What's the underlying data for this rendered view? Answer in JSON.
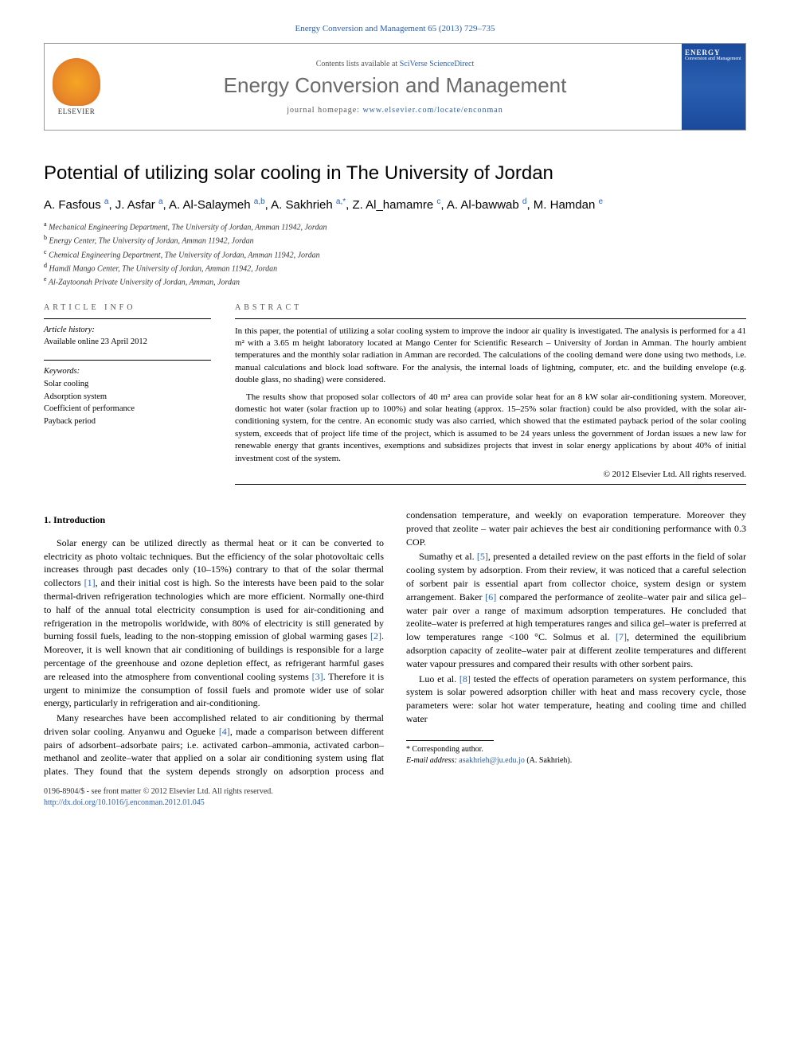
{
  "colors": {
    "link": "#2a5fb0",
    "text": "#000000",
    "muted": "#555555",
    "journal_name": "#6a6a6a",
    "background": "#ffffff",
    "border": "#000000",
    "cover_bg": "#1a4a9c"
  },
  "typography": {
    "body_font": "Georgia, 'Times New Roman', serif",
    "heading_font": "'Trebuchet MS', Arial, sans-serif",
    "title_size_pt": 24,
    "journal_size_pt": 26,
    "body_size_pt": 12,
    "abstract_size_pt": 11,
    "small_size_pt": 10
  },
  "header": {
    "journal_ref": "Energy Conversion and Management 65 (2013) 729–735",
    "contents_prefix": "Contents lists available at ",
    "contents_link": "SciVerse ScienceDirect",
    "journal_name": "Energy Conversion and Management",
    "homepage_prefix": "journal homepage: ",
    "homepage_url": "www.elsevier.com/locate/enconman",
    "elsevier_label": "ELSEVIER",
    "cover_title": "ENERGY",
    "cover_sub": "Conversion and Management"
  },
  "article": {
    "title": "Potential of utilizing solar cooling in The University of Jordan",
    "authors_html": "A. Fasfous <sup>a</sup>, J. Asfar <sup>a</sup>, A. Al-Salaymeh <sup>a,b</sup>, A. Sakhrieh <sup>a,*</sup>, Z. Al_hamamre <sup>c</sup>, A. Al-bawwab <sup>d</sup>, M. Hamdan <sup>e</sup>",
    "affiliations": [
      {
        "sup": "a",
        "text": "Mechanical Engineering Department, The University of Jordan, Amman 11942, Jordan"
      },
      {
        "sup": "b",
        "text": "Energy Center, The University of Jordan, Amman 11942, Jordan"
      },
      {
        "sup": "c",
        "text": "Chemical Engineering Department, The University of Jordan, Amman 11942, Jordan"
      },
      {
        "sup": "d",
        "text": "Hamdi Mango Center, The University of Jordan, Amman 11942, Jordan"
      },
      {
        "sup": "e",
        "text": "Al-Zaytoonah Private University of Jordan, Amman, Jordan"
      }
    ]
  },
  "info": {
    "section_label": "ARTICLE INFO",
    "history_heading": "Article history:",
    "history_line": "Available online 23 April 2012",
    "keywords_heading": "Keywords:",
    "keywords": [
      "Solar cooling",
      "Adsorption system",
      "Coefficient of performance",
      "Payback period"
    ]
  },
  "abstract": {
    "section_label": "ABSTRACT",
    "paragraphs": [
      "In this paper, the potential of utilizing a solar cooling system to improve the indoor air quality is investigated. The analysis is performed for a 41 m² with a 3.65 m height laboratory located at Mango Center for Scientific Research – University of Jordan in Amman. The hourly ambient temperatures and the monthly solar radiation in Amman are recorded. The calculations of the cooling demand were done using two methods, i.e. manual calculations and block load software. For the analysis, the internal loads of lightning, computer, etc. and the building envelope (e.g. double glass, no shading) were considered.",
      "The results show that proposed solar collectors of 40 m² area can provide solar heat for an 8 kW solar air-conditioning system. Moreover, domestic hot water (solar fraction up to 100%) and solar heating (approx. 15–25% solar fraction) could be also provided, with the solar air-conditioning system, for the centre. An economic study was also carried, which showed that the estimated payback period of the solar cooling system, exceeds that of project life time of the project, which is assumed to be 24 years unless the government of Jordan issues a new law for renewable energy that grants incentives, exemptions and subsidizes projects that invest in solar energy applications by about 40% of initial investment cost of the system."
    ],
    "copyright": "© 2012 Elsevier Ltd. All rights reserved."
  },
  "body": {
    "section_number": "1.",
    "section_title": "Introduction",
    "para1": "Solar energy can be utilized directly as thermal heat or it can be converted to electricity as photo voltaic techniques. But the efficiency of the solar photovoltaic cells increases through past decades only (10–15%) contrary to that of the solar thermal collectors [1], and their initial cost is high. So the interests have been paid to the solar thermal-driven refrigeration technologies which are more efficient. Normally one-third to half of the annual total electricity consumption is used for air-conditioning and refrigeration in the metropolis worldwide, with 80% of electricity is still generated by burning fossil fuels, leading to the non-stopping emission of global warming gases [2]. Moreover, it is well known that air conditioning of buildings is responsible for a large percentage of the greenhouse and ozone depletion effect, as refrigerant harmful gases are released into the atmosphere from conventional cooling systems [3]. Therefore it is urgent to minimize the consumption of fossil fuels and promote wider use of solar energy, particularly in refrigeration and air-conditioning.",
    "para2": "Many researches have been accomplished related to air conditioning by thermal driven solar cooling. Anyanwu and Ogueke [4], made a comparison between different pairs of adsorbent–adsorbate pairs; i.e. activated carbon–ammonia, activated carbon–methanol and zeolite–water that applied on a solar air conditioning system using flat plates. They found that the system depends strongly on adsorption process and condensation temperature, and weekly on evaporation temperature. Moreover they proved that zeolite – water pair achieves the best air conditioning performance with 0.3 COP.",
    "para3": "Sumathy et al. [5], presented a detailed review on the past efforts in the field of solar cooling system by adsorption. From their review, it was noticed that a careful selection of sorbent pair is essential apart from collector choice, system design or system arrangement. Baker [6] compared the performance of zeolite–water pair and silica gel–water pair over a range of maximum adsorption temperatures. He concluded that zeolite–water is preferred at high temperatures ranges and silica gel–water is preferred at low temperatures range <100 °C. Solmus et al. [7], determined the equilibrium adsorption capacity of zeolite–water pair at different zeolite temperatures and different water vapour pressures and compared their results with other sorbent pairs.",
    "para4": "Luo et al. [8] tested the effects of operation parameters on system performance, this system is solar powered adsorption chiller with heat and mass recovery cycle, those parameters were: solar hot water temperature, heating and cooling time and chilled water"
  },
  "footer": {
    "corr_label": "* Corresponding author.",
    "email_label": "E-mail address: ",
    "email": "asakhrieh@ju.edu.jo",
    "email_name": "(A. Sakhrieh).",
    "issn_line": "0196-8904/$ - see front matter © 2012 Elsevier Ltd. All rights reserved.",
    "doi_url": "http://dx.doi.org/10.1016/j.enconman.2012.01.045"
  }
}
